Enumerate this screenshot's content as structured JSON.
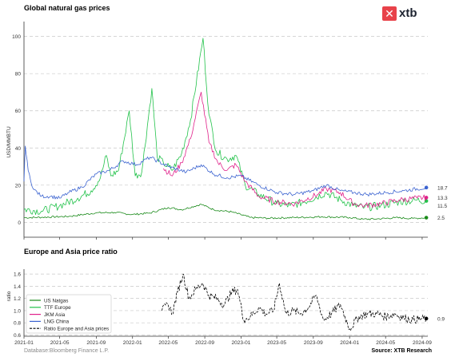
{
  "logo": {
    "mark": "✕",
    "text": "xtb",
    "color": "#e8424a"
  },
  "footer": {
    "source_left": "Database:Bloomberg Finance L.P.",
    "source_right": "Source: XTB Research"
  },
  "chart_data": [
    {
      "type": "line",
      "title": "Global natural gas prices",
      "ylabel": "USD/MMBTU",
      "xlabel": "",
      "ylim": [
        -8,
        108
      ],
      "xlim": [
        "2021-01-01",
        "2024-09-20"
      ],
      "yticks": [
        0,
        20,
        40,
        60,
        80,
        100
      ],
      "grid": "horizontal dashed",
      "end_labels": [
        "18.7",
        "13.3",
        "11.5",
        "2.5"
      ],
      "series": [
        {
          "name": "US Natgas",
          "color": "#1a8a1a",
          "x": [
            "2021-01-01",
            "2021-03-01",
            "2021-06-01",
            "2021-09-01",
            "2021-11-01",
            "2022-01-01",
            "2022-03-01",
            "2022-05-01",
            "2022-06-15",
            "2022-08-20",
            "2022-10-01",
            "2022-12-01",
            "2023-02-01",
            "2023-04-01",
            "2023-07-01",
            "2023-10-01",
            "2024-01-01",
            "2024-02-15",
            "2024-04-01",
            "2024-06-01",
            "2024-08-01",
            "2024-09-15"
          ],
          "y": [
            2.5,
            2.7,
            3.2,
            5.1,
            5.3,
            4.2,
            5.0,
            8.0,
            6.8,
            9.7,
            6.8,
            5.6,
            2.6,
            2.2,
            2.6,
            3.0,
            2.6,
            1.7,
            1.8,
            2.5,
            2.1,
            2.5
          ]
        },
        {
          "name": "TTF Europe",
          "color": "#22c24a",
          "x": [
            "2021-01-01",
            "2021-03-01",
            "2021-05-01",
            "2021-07-01",
            "2021-08-15",
            "2021-09-15",
            "2021-10-05",
            "2021-10-20",
            "2021-11-15",
            "2021-12-21",
            "2022-01-10",
            "2022-02-01",
            "2022-03-07",
            "2022-03-25",
            "2022-04-15",
            "2022-05-15",
            "2022-06-15",
            "2022-07-15",
            "2022-08-26",
            "2022-09-15",
            "2022-10-10",
            "2022-11-15",
            "2022-12-15",
            "2023-01-15",
            "2023-03-01",
            "2023-05-01",
            "2023-06-15",
            "2023-08-01",
            "2023-10-15",
            "2023-12-01",
            "2024-01-15",
            "2024-02-20",
            "2024-04-15",
            "2024-06-15",
            "2024-08-15",
            "2024-09-15"
          ],
          "y": [
            7,
            6,
            9,
            13,
            17,
            24,
            36,
            25,
            28,
            60,
            25,
            27,
            72,
            35,
            32,
            28,
            37,
            55,
            99,
            58,
            38,
            34,
            36,
            20,
            15,
            10,
            9,
            11,
            16,
            12,
            9,
            8,
            9,
            11,
            12,
            11.5
          ]
        },
        {
          "name": "JKM Asia",
          "color": "#e0218a",
          "x": [
            "2022-04-15",
            "2022-05-15",
            "2022-06-15",
            "2022-07-15",
            "2022-08-20",
            "2022-09-15",
            "2022-10-15",
            "2022-11-15",
            "2022-12-15",
            "2023-01-15",
            "2023-03-01",
            "2023-05-01",
            "2023-07-01",
            "2023-09-15",
            "2023-10-15",
            "2023-12-01",
            "2024-01-15",
            "2024-02-20",
            "2024-04-15",
            "2024-06-15",
            "2024-08-15",
            "2024-09-15"
          ],
          "y": [
            29,
            25,
            32,
            45,
            70,
            43,
            32,
            28,
            31,
            22,
            14,
            11,
            10,
            15,
            18,
            16,
            10,
            9,
            10,
            12,
            13,
            13.3
          ]
        },
        {
          "name": "LNG China",
          "color": "#3b63d0",
          "x": [
            "2021-01-01",
            "2021-01-05",
            "2021-01-15",
            "2021-02-01",
            "2021-03-01",
            "2021-04-01",
            "2021-05-01",
            "2021-06-01",
            "2021-07-15",
            "2021-09-01",
            "2021-10-15",
            "2021-12-01",
            "2022-01-15",
            "2022-03-01",
            "2022-05-01",
            "2022-07-01",
            "2022-08-20",
            "2022-10-01",
            "2022-11-15",
            "2023-01-01",
            "2023-03-01",
            "2023-05-01",
            "2023-07-01",
            "2023-09-01",
            "2023-10-15",
            "2023-12-01",
            "2024-01-15",
            "2024-03-01",
            "2024-05-01",
            "2024-07-01",
            "2024-09-15"
          ],
          "y": [
            22,
            41,
            28,
            18,
            14,
            14,
            13,
            16,
            19,
            26,
            28,
            33,
            31,
            35,
            30,
            27,
            31,
            26,
            24,
            25,
            20,
            16,
            15,
            17,
            20,
            17,
            16,
            15,
            16,
            17,
            18.7
          ]
        }
      ]
    },
    {
      "type": "line",
      "title": "Europe and Asia price ratio",
      "ylabel": "ratio",
      "xlabel": "",
      "ylim": [
        0.58,
        1.68
      ],
      "xlim": [
        "2021-01-01",
        "2024-09-20"
      ],
      "yticks": [
        0.6,
        0.8,
        1.0,
        1.2,
        1.4,
        1.6
      ],
      "xticks": [
        "2021-01",
        "2021-05",
        "2021-09",
        "2022-01",
        "2022-05",
        "2022-09",
        "2023-01",
        "2023-05",
        "2023-09",
        "2024-01",
        "2024-05",
        "2024-09"
      ],
      "grid": "horizontal dashed",
      "legend_position": "bottom-left",
      "end_labels": [
        "0.9"
      ],
      "series": [
        {
          "name": "Ratio Europe and Asia prices",
          "color": "#000000",
          "style": "dashed",
          "x": [
            "2022-04-10",
            "2022-05-01",
            "2022-05-15",
            "2022-06-01",
            "2022-06-20",
            "2022-07-10",
            "2022-08-01",
            "2022-08-25",
            "2022-09-15",
            "2022-10-10",
            "2022-11-05",
            "2022-12-01",
            "2022-12-20",
            "2023-01-10",
            "2023-02-01",
            "2023-03-01",
            "2023-03-25",
            "2023-04-20",
            "2023-05-10",
            "2023-06-01",
            "2023-06-25",
            "2023-07-20",
            "2023-08-15",
            "2023-09-10",
            "2023-10-05",
            "2023-11-01",
            "2023-12-01",
            "2024-01-01",
            "2024-02-01",
            "2024-03-01",
            "2024-04-01",
            "2024-05-01",
            "2024-06-01",
            "2024-07-01",
            "2024-08-01",
            "2024-09-15"
          ],
          "y": [
            1.0,
            1.1,
            0.95,
            1.3,
            1.6,
            1.2,
            1.35,
            1.45,
            1.25,
            1.2,
            1.1,
            1.3,
            1.35,
            0.85,
            0.9,
            1.05,
            0.95,
            1.0,
            1.45,
            0.95,
            1.0,
            0.95,
            1.05,
            1.25,
            0.85,
            0.95,
            1.1,
            0.7,
            0.9,
            0.95,
            0.95,
            0.9,
            0.95,
            0.88,
            0.85,
            0.87
          ]
        }
      ]
    }
  ],
  "legend": [
    {
      "name": "US Natgas",
      "color": "#1a8a1a",
      "style": "solid"
    },
    {
      "name": "TTF Europe",
      "color": "#22c24a",
      "style": "solid"
    },
    {
      "name": "JKM Asia",
      "color": "#e0218a",
      "style": "solid"
    },
    {
      "name": "LNG China",
      "color": "#3b63d0",
      "style": "solid"
    },
    {
      "name": "Ratio Europe and Asia prices",
      "color": "#000000",
      "style": "dashed"
    }
  ]
}
